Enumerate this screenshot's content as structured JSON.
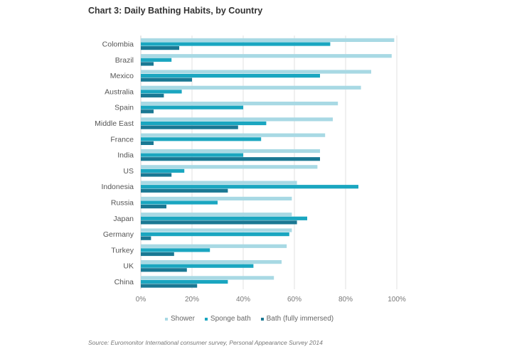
{
  "title": "Chart 3: Daily Bathing Habits, by Country",
  "source": "Source: Euromonitor International consumer survey, Personal Appearance Survey 2014",
  "colors": {
    "shower": "#a8d9e4",
    "sponge": "#1aa6c0",
    "bath": "#1a7893"
  },
  "chart_data": {
    "type": "bar",
    "orientation": "horizontal",
    "categories": [
      "Colombia",
      "Brazil",
      "Mexico",
      "Australia",
      "Spain",
      "Middle East",
      "France",
      "India",
      "US",
      "Indonesia",
      "Russia",
      "Japan",
      "Germany",
      "Turkey",
      "UK",
      "China"
    ],
    "series": [
      {
        "name": "Shower",
        "values": [
          99,
          98,
          90,
          86,
          77,
          75,
          72,
          70,
          69,
          61,
          59,
          59,
          59,
          57,
          55,
          52
        ]
      },
      {
        "name": "Sponge bath",
        "values": [
          74,
          12,
          70,
          16,
          40,
          49,
          47,
          40,
          17,
          85,
          30,
          65,
          58,
          27,
          44,
          34
        ]
      },
      {
        "name": "Bath (fully immersed)",
        "values": [
          15,
          5,
          20,
          9,
          5,
          38,
          5,
          70,
          12,
          34,
          10,
          61,
          4,
          13,
          18,
          22
        ]
      }
    ],
    "xticks": [
      "0%",
      "20%",
      "40%",
      "60%",
      "80%",
      "100%"
    ],
    "xlim": [
      0,
      100
    ],
    "grid": "vertical",
    "legend_position": "bottom"
  }
}
